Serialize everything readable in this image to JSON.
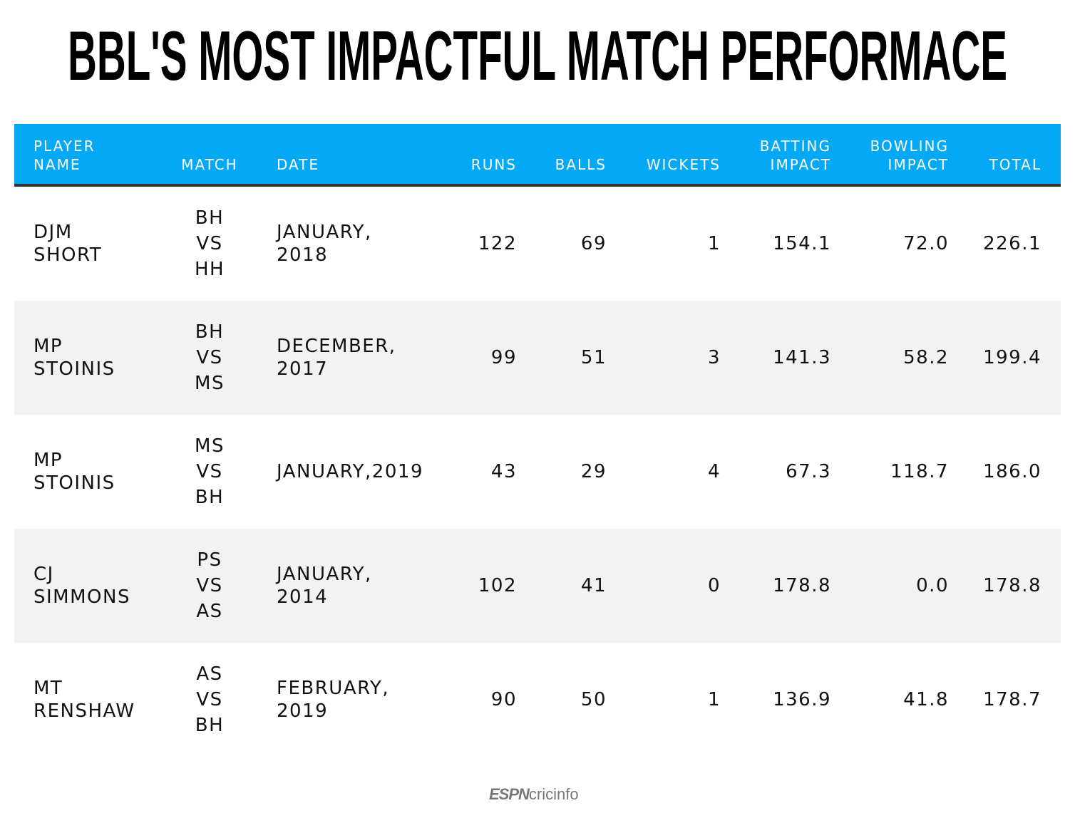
{
  "title": "BBL'S MOST IMPACTFUL MATCH PERFORMACE",
  "colors": {
    "header_bg": "#03a9f4",
    "rule": "#333333",
    "alt_row": "#f2f2f2"
  },
  "chart_data": {
    "type": "table",
    "columns": [
      "PLAYER\nNAME",
      "MATCH",
      "DATE",
      "RUNS",
      "BALLS",
      "WICKETS",
      "BATTING\nIMPACT",
      "BOWLING\nIMPACT",
      "TOTAL"
    ],
    "rows": [
      [
        "DJM\nSHORT",
        "BH\nVS\nHH",
        "JANUARY,\n2018",
        "122",
        "69",
        "1",
        "154.1",
        "72.0",
        "226.1"
      ],
      [
        "MP\nSTOINIS",
        "BH\nVS\nMS",
        "DECEMBER,\n2017",
        "99",
        "51",
        "3",
        "141.3",
        "58.2",
        "199.4"
      ],
      [
        "MP\nSTOINIS",
        "MS\nVS\nBH",
        "JANUARY,2019",
        "43",
        "29",
        "4",
        "67.3",
        "118.7",
        "186.0"
      ],
      [
        "CJ\nSIMMONS",
        "PS\nVS\nAS",
        "JANUARY,\n2014",
        "102",
        "41",
        "0",
        "178.8",
        "0.0",
        "178.8"
      ],
      [
        "MT\nRENSHAW",
        "AS\nVS\nBH",
        "FEBRUARY,\n2019",
        "90",
        "50",
        "1",
        "136.9",
        "41.8",
        "178.7"
      ]
    ]
  },
  "footer": {
    "logo_espn": "ESPN",
    "logo_cricinfo": "cricinfo"
  }
}
